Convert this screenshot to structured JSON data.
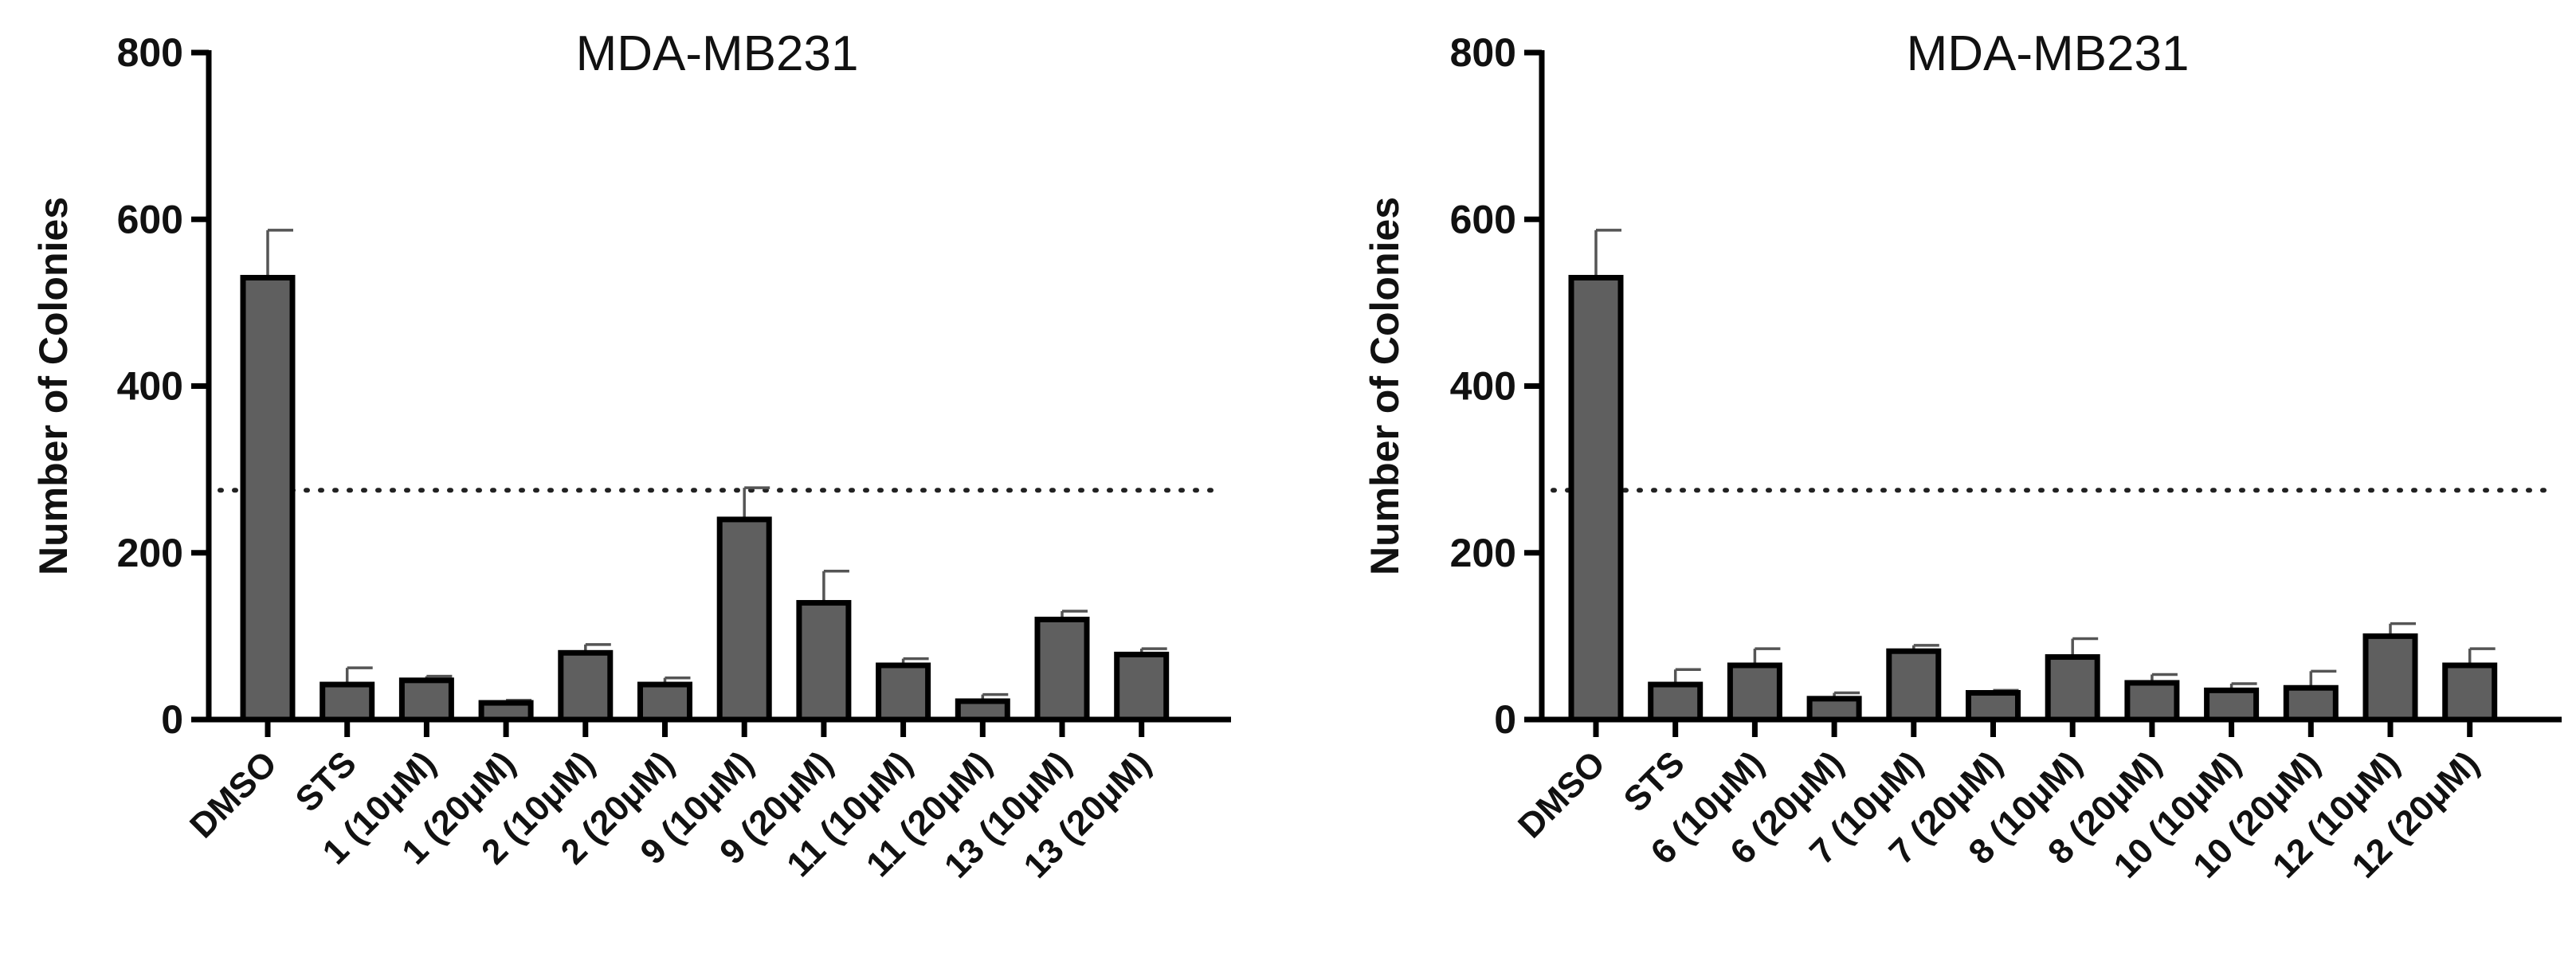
{
  "chart_data": [
    {
      "type": "bar",
      "title": "MDA-MB231",
      "xlabel": "",
      "ylabel": "Number of Colonies",
      "ylim": [
        0,
        800
      ],
      "yticks": [
        "0",
        "200",
        "400",
        "600",
        "800"
      ],
      "reference_line": 275,
      "grid": false,
      "categories": [
        "DMSO",
        "STS",
        "1 (10μM)",
        "1 (20μM)",
        "2 (10μM)",
        "2 (20μM)",
        "9 (10μM)",
        "9 (20μM)",
        "11 (10μM)",
        "11 (20μM)",
        "13 (10μM)",
        "13 (20μM)"
      ],
      "values": [
        530,
        42,
        47,
        20,
        80,
        42,
        240,
        140,
        65,
        22,
        120,
        78
      ],
      "errors": [
        57,
        20,
        5,
        3,
        10,
        8,
        38,
        38,
        8,
        8,
        10,
        7
      ]
    },
    {
      "type": "bar",
      "title": "MDA-MB231",
      "xlabel": "",
      "ylabel": "Number of Colonies",
      "ylim": [
        0,
        800
      ],
      "yticks": [
        "0",
        "200",
        "400",
        "600",
        "800"
      ],
      "reference_line": 275,
      "grid": false,
      "categories": [
        "DMSO",
        "STS",
        "6 (10μM)",
        "6 (20μM)",
        "7 (10μM)",
        "7 (20μM)",
        "8 (10μM)",
        "8 (20μM)",
        "10 (10μM)",
        "10 (20μM)",
        "12 (10μM)",
        "12 (20μM)"
      ],
      "values": [
        530,
        42,
        65,
        25,
        82,
        32,
        75,
        44,
        35,
        38,
        100,
        65
      ],
      "errors": [
        57,
        18,
        20,
        7,
        7,
        3,
        22,
        10,
        8,
        20,
        15,
        20
      ]
    }
  ]
}
